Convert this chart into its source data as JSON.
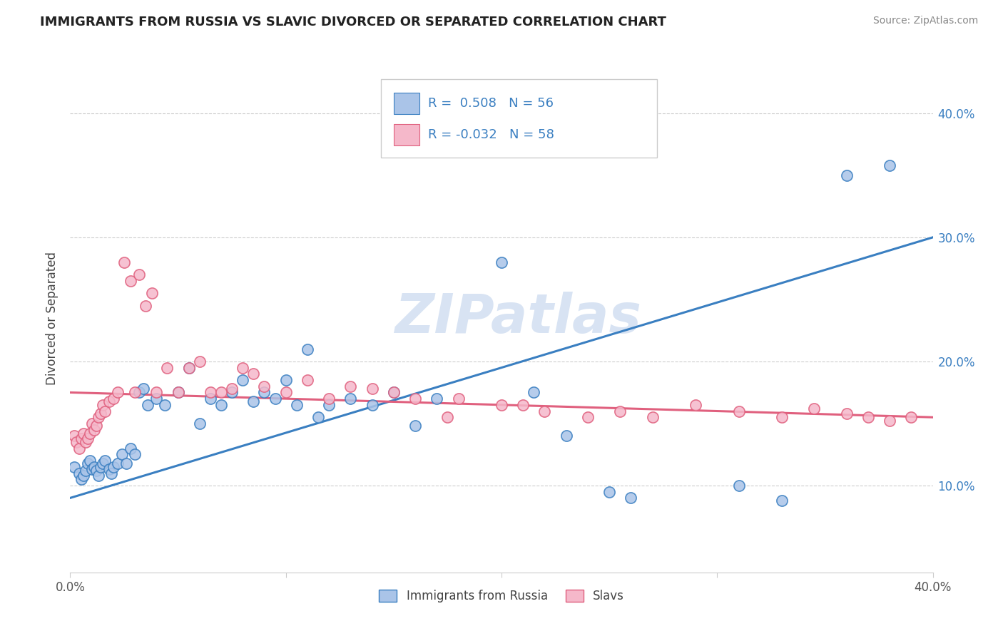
{
  "title": "IMMIGRANTS FROM RUSSIA VS SLAVIC DIVORCED OR SEPARATED CORRELATION CHART",
  "source": "Source: ZipAtlas.com",
  "ylabel": "Divorced or Separated",
  "watermark": "ZIPatlas",
  "legend_r1": "R =  0.508",
  "legend_n1": "N = 56",
  "legend_r2": "R = -0.032",
  "legend_n2": "N = 58",
  "blue_color": "#aac4e8",
  "pink_color": "#f5b8ca",
  "line_blue": "#3a7fc1",
  "line_pink": "#e0607e",
  "xlim": [
    0.0,
    0.4
  ],
  "ylim": [
    0.03,
    0.44
  ],
  "yticks": [
    0.1,
    0.2,
    0.3,
    0.4
  ],
  "ytick_labels": [
    "10.0%",
    "20.0%",
    "30.0%",
    "40.0%"
  ],
  "blue_scatter_x": [
    0.002,
    0.004,
    0.005,
    0.006,
    0.007,
    0.008,
    0.009,
    0.01,
    0.011,
    0.012,
    0.013,
    0.014,
    0.015,
    0.016,
    0.018,
    0.019,
    0.02,
    0.022,
    0.024,
    0.026,
    0.028,
    0.03,
    0.032,
    0.034,
    0.036,
    0.04,
    0.044,
    0.05,
    0.055,
    0.06,
    0.065,
    0.07,
    0.075,
    0.08,
    0.085,
    0.09,
    0.095,
    0.1,
    0.105,
    0.11,
    0.115,
    0.12,
    0.13,
    0.14,
    0.15,
    0.16,
    0.17,
    0.2,
    0.215,
    0.23,
    0.25,
    0.26,
    0.31,
    0.33,
    0.36,
    0.38
  ],
  "blue_scatter_y": [
    0.115,
    0.11,
    0.105,
    0.108,
    0.112,
    0.118,
    0.12,
    0.113,
    0.115,
    0.112,
    0.108,
    0.115,
    0.118,
    0.12,
    0.113,
    0.11,
    0.115,
    0.118,
    0.125,
    0.118,
    0.13,
    0.125,
    0.175,
    0.178,
    0.165,
    0.17,
    0.165,
    0.175,
    0.195,
    0.15,
    0.17,
    0.165,
    0.175,
    0.185,
    0.168,
    0.175,
    0.17,
    0.185,
    0.165,
    0.21,
    0.155,
    0.165,
    0.17,
    0.165,
    0.175,
    0.148,
    0.17,
    0.28,
    0.175,
    0.14,
    0.095,
    0.09,
    0.1,
    0.088,
    0.35,
    0.358
  ],
  "pink_scatter_x": [
    0.002,
    0.003,
    0.004,
    0.005,
    0.006,
    0.007,
    0.008,
    0.009,
    0.01,
    0.011,
    0.012,
    0.013,
    0.014,
    0.015,
    0.016,
    0.018,
    0.02,
    0.022,
    0.025,
    0.028,
    0.03,
    0.032,
    0.035,
    0.038,
    0.04,
    0.045,
    0.05,
    0.055,
    0.06,
    0.065,
    0.07,
    0.075,
    0.08,
    0.085,
    0.09,
    0.1,
    0.11,
    0.12,
    0.13,
    0.14,
    0.15,
    0.16,
    0.175,
    0.18,
    0.2,
    0.21,
    0.22,
    0.24,
    0.255,
    0.27,
    0.29,
    0.31,
    0.33,
    0.345,
    0.36,
    0.37,
    0.38,
    0.39
  ],
  "pink_scatter_y": [
    0.14,
    0.135,
    0.13,
    0.138,
    0.142,
    0.135,
    0.138,
    0.142,
    0.15,
    0.145,
    0.148,
    0.155,
    0.158,
    0.165,
    0.16,
    0.168,
    0.17,
    0.175,
    0.28,
    0.265,
    0.175,
    0.27,
    0.245,
    0.255,
    0.175,
    0.195,
    0.175,
    0.195,
    0.2,
    0.175,
    0.175,
    0.178,
    0.195,
    0.19,
    0.18,
    0.175,
    0.185,
    0.17,
    0.18,
    0.178,
    0.175,
    0.17,
    0.155,
    0.17,
    0.165,
    0.165,
    0.16,
    0.155,
    0.16,
    0.155,
    0.165,
    0.16,
    0.155,
    0.162,
    0.158,
    0.155,
    0.152,
    0.155
  ]
}
